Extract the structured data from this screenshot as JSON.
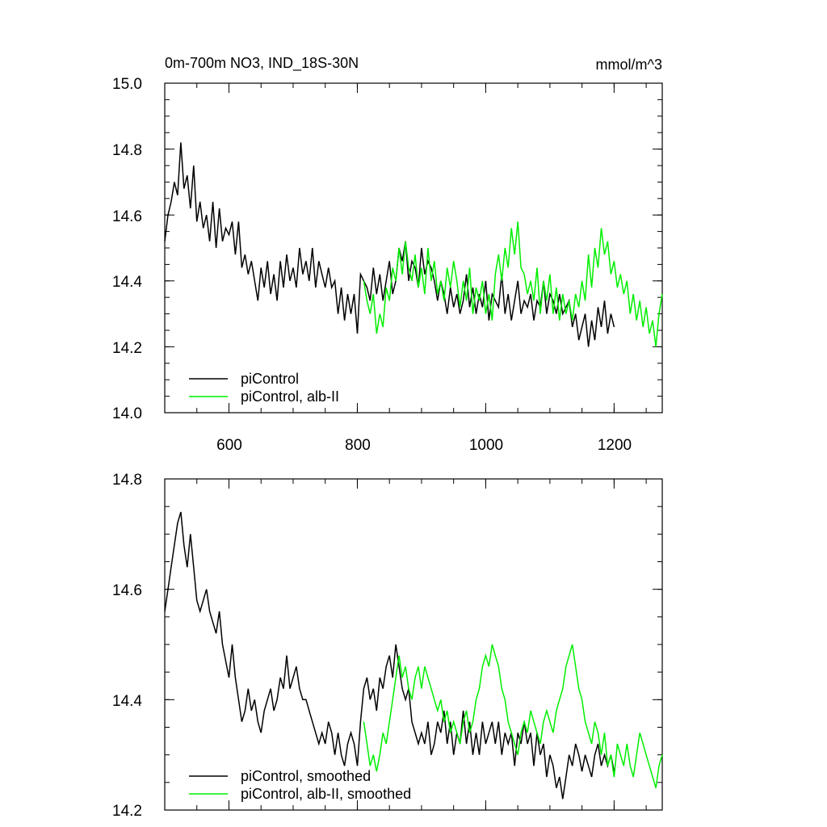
{
  "chart_data": [
    {
      "type": "line",
      "title": "0m-700m NO3, IND_18S-30N",
      "units": "mmol/m^3",
      "xlim": [
        500,
        1275
      ],
      "ylim": [
        14.0,
        15.0
      ],
      "x_ticks": [
        600,
        800,
        1000,
        1200
      ],
      "y_ticks": [
        14.0,
        14.2,
        14.4,
        14.6,
        14.8,
        15.0
      ],
      "y_tick_labels": [
        "14.0",
        "14.2",
        "14.4",
        "14.6",
        "14.8",
        "15.0"
      ],
      "x_tick_labels": [
        "600",
        "800",
        "1000",
        "1200"
      ],
      "grid": false,
      "legend_placement": "bottom-left",
      "series": [
        {
          "name": "piControl",
          "color": "#000000",
          "x": [
            500,
            505,
            510,
            515,
            520,
            525,
            530,
            535,
            540,
            545,
            550,
            555,
            560,
            565,
            570,
            575,
            580,
            585,
            590,
            595,
            600,
            605,
            610,
            615,
            620,
            625,
            630,
            635,
            640,
            645,
            650,
            655,
            660,
            665,
            670,
            675,
            680,
            685,
            690,
            695,
            700,
            705,
            710,
            715,
            720,
            725,
            730,
            735,
            740,
            745,
            750,
            755,
            760,
            765,
            770,
            775,
            780,
            785,
            790,
            795,
            800,
            805,
            810,
            815,
            820,
            825,
            830,
            835,
            840,
            845,
            850,
            855,
            860,
            865,
            870,
            875,
            880,
            885,
            890,
            895,
            900,
            905,
            910,
            915,
            920,
            925,
            930,
            935,
            940,
            945,
            950,
            955,
            960,
            965,
            970,
            975,
            980,
            985,
            990,
            995,
            1000,
            1005,
            1010,
            1015,
            1020,
            1025,
            1030,
            1035,
            1040,
            1045,
            1050,
            1055,
            1060,
            1065,
            1070,
            1075,
            1080,
            1085,
            1090,
            1095,
            1100,
            1105,
            1110,
            1115,
            1120,
            1125,
            1130,
            1135,
            1140,
            1145,
            1150,
            1155,
            1160,
            1165,
            1170,
            1175,
            1180,
            1185,
            1190,
            1195,
            1200
          ],
          "values": [
            14.52,
            14.6,
            14.64,
            14.7,
            14.66,
            14.82,
            14.68,
            14.72,
            14.62,
            14.75,
            14.58,
            14.64,
            14.56,
            14.6,
            14.52,
            14.64,
            14.5,
            14.62,
            14.52,
            14.56,
            14.54,
            14.58,
            14.48,
            14.58,
            14.44,
            14.48,
            14.42,
            14.46,
            14.4,
            14.34,
            14.44,
            14.38,
            14.46,
            14.36,
            14.42,
            14.34,
            14.46,
            14.38,
            14.48,
            14.4,
            14.44,
            14.38,
            14.5,
            14.42,
            14.46,
            14.4,
            14.5,
            14.38,
            14.46,
            14.42,
            14.38,
            14.44,
            14.38,
            14.4,
            14.3,
            14.38,
            14.28,
            14.36,
            14.3,
            14.36,
            14.24,
            14.42,
            14.4,
            14.38,
            14.34,
            14.44,
            14.36,
            14.42,
            14.34,
            14.4,
            14.46,
            14.36,
            14.4,
            14.5,
            14.46,
            14.52,
            14.4,
            14.46,
            14.44,
            14.38,
            14.5,
            14.42,
            14.46,
            14.44,
            14.4,
            14.34,
            14.4,
            14.36,
            14.3,
            14.38,
            14.32,
            14.36,
            14.3,
            14.34,
            14.42,
            14.32,
            14.38,
            14.3,
            14.36,
            14.32,
            14.4,
            14.28,
            14.36,
            14.34,
            14.32,
            14.42,
            14.3,
            14.36,
            14.28,
            14.34,
            14.4,
            14.3,
            14.34,
            14.32,
            14.36,
            14.28,
            14.34,
            14.32,
            14.4,
            14.3,
            14.36,
            14.34,
            14.3,
            14.36,
            14.3,
            14.32,
            14.34,
            14.26,
            14.3,
            14.22,
            14.26,
            14.3,
            14.2,
            14.28,
            14.22,
            14.32,
            14.26,
            14.34,
            14.24,
            14.3,
            14.26
          ]
        },
        {
          "name": "piControl, alb-II",
          "color": "#00ee00",
          "x": [
            810,
            815,
            820,
            825,
            830,
            835,
            840,
            845,
            850,
            855,
            860,
            865,
            870,
            875,
            880,
            885,
            890,
            895,
            900,
            905,
            910,
            915,
            920,
            925,
            930,
            935,
            940,
            945,
            950,
            955,
            960,
            965,
            970,
            975,
            980,
            985,
            990,
            995,
            1000,
            1005,
            1010,
            1015,
            1020,
            1025,
            1030,
            1035,
            1040,
            1045,
            1050,
            1055,
            1060,
            1065,
            1070,
            1075,
            1080,
            1085,
            1090,
            1095,
            1100,
            1105,
            1110,
            1115,
            1120,
            1125,
            1130,
            1135,
            1140,
            1145,
            1150,
            1155,
            1160,
            1165,
            1170,
            1175,
            1180,
            1185,
            1190,
            1195,
            1200,
            1205,
            1210,
            1215,
            1220,
            1225,
            1230,
            1235,
            1240,
            1245,
            1250,
            1255,
            1260,
            1265,
            1270,
            1275
          ],
          "values": [
            14.4,
            14.34,
            14.3,
            14.36,
            14.24,
            14.3,
            14.26,
            14.38,
            14.34,
            14.44,
            14.4,
            14.5,
            14.42,
            14.52,
            14.44,
            14.4,
            14.48,
            14.38,
            14.44,
            14.36,
            14.5,
            14.4,
            14.46,
            14.36,
            14.4,
            14.34,
            14.44,
            14.38,
            14.46,
            14.4,
            14.32,
            14.4,
            14.34,
            14.44,
            14.3,
            14.38,
            14.34,
            14.4,
            14.3,
            14.36,
            14.28,
            14.42,
            14.48,
            14.4,
            14.5,
            14.44,
            14.56,
            14.48,
            14.58,
            14.44,
            14.42,
            14.36,
            14.4,
            14.34,
            14.44,
            14.3,
            14.4,
            14.34,
            14.42,
            14.3,
            14.38,
            14.28,
            14.36,
            14.3,
            14.34,
            14.28,
            14.36,
            14.32,
            14.4,
            14.34,
            14.48,
            14.38,
            14.5,
            14.44,
            14.56,
            14.48,
            14.52,
            14.42,
            14.46,
            14.38,
            14.42,
            14.36,
            14.4,
            14.3,
            14.36,
            14.28,
            14.34,
            14.26,
            14.32,
            14.24,
            14.28,
            14.2,
            14.3,
            14.36
          ]
        }
      ]
    },
    {
      "type": "line",
      "xlim": [
        500,
        1275
      ],
      "ylim": [
        14.2,
        14.8
      ],
      "x_ticks": [
        600,
        800,
        1000,
        1200
      ],
      "y_ticks": [
        14.2,
        14.4,
        14.6,
        14.8
      ],
      "y_tick_labels": [
        "14.2",
        "14.4",
        "14.6",
        "14.8"
      ],
      "grid": false,
      "legend_placement": "bottom-left",
      "series": [
        {
          "name": "piControl, smoothed",
          "color": "#000000",
          "x": [
            500,
            505,
            510,
            515,
            520,
            525,
            530,
            535,
            540,
            545,
            550,
            555,
            560,
            565,
            570,
            575,
            580,
            585,
            590,
            595,
            600,
            605,
            610,
            615,
            620,
            625,
            630,
            635,
            640,
            645,
            650,
            655,
            660,
            665,
            670,
            675,
            680,
            685,
            690,
            695,
            700,
            705,
            710,
            715,
            720,
            725,
            730,
            735,
            740,
            745,
            750,
            755,
            760,
            765,
            770,
            775,
            780,
            785,
            790,
            795,
            800,
            805,
            810,
            815,
            820,
            825,
            830,
            835,
            840,
            845,
            850,
            855,
            860,
            865,
            870,
            875,
            880,
            885,
            890,
            895,
            900,
            905,
            910,
            915,
            920,
            925,
            930,
            935,
            940,
            945,
            950,
            955,
            960,
            965,
            970,
            975,
            980,
            985,
            990,
            995,
            1000,
            1005,
            1010,
            1015,
            1020,
            1025,
            1030,
            1035,
            1040,
            1045,
            1050,
            1055,
            1060,
            1065,
            1070,
            1075,
            1080,
            1085,
            1090,
            1095,
            1100,
            1105,
            1110,
            1115,
            1120,
            1125,
            1130,
            1135,
            1140,
            1145,
            1150,
            1155,
            1160,
            1165,
            1170,
            1175,
            1180,
            1185,
            1190,
            1195,
            1200
          ],
          "values": [
            14.56,
            14.6,
            14.64,
            14.68,
            14.72,
            14.74,
            14.68,
            14.64,
            14.7,
            14.64,
            14.58,
            14.56,
            14.58,
            14.6,
            14.56,
            14.54,
            14.52,
            14.56,
            14.5,
            14.47,
            14.44,
            14.5,
            14.44,
            14.4,
            14.36,
            14.38,
            14.42,
            14.38,
            14.4,
            14.36,
            14.34,
            14.38,
            14.4,
            14.42,
            14.38,
            14.4,
            14.44,
            14.42,
            14.48,
            14.42,
            14.44,
            14.46,
            14.42,
            14.4,
            14.4,
            14.38,
            14.36,
            14.34,
            14.32,
            14.34,
            14.32,
            14.36,
            14.34,
            14.3,
            14.34,
            14.3,
            14.28,
            14.32,
            14.34,
            14.32,
            14.28,
            14.36,
            14.42,
            14.44,
            14.4,
            14.42,
            14.38,
            14.44,
            14.42,
            14.46,
            14.48,
            14.44,
            14.5,
            14.46,
            14.42,
            14.4,
            14.42,
            14.36,
            14.34,
            14.32,
            14.34,
            14.32,
            14.36,
            14.3,
            14.32,
            14.36,
            14.34,
            14.38,
            14.32,
            14.36,
            14.3,
            14.34,
            14.32,
            14.38,
            14.32,
            14.36,
            14.3,
            14.34,
            14.3,
            14.36,
            14.32,
            14.34,
            14.36,
            14.32,
            14.36,
            14.3,
            14.34,
            14.32,
            14.34,
            14.28,
            14.34,
            14.32,
            14.36,
            14.32,
            14.34,
            14.28,
            14.34,
            14.3,
            14.32,
            14.26,
            14.3,
            14.28,
            14.24,
            14.26,
            14.22,
            14.26,
            14.3,
            14.28,
            14.32,
            14.3,
            14.27,
            14.3,
            14.28,
            14.26,
            14.3,
            14.32,
            14.28,
            14.3,
            14.28,
            14.3,
            14.27
          ]
        },
        {
          "name": "piControl, alb-II, smoothed",
          "color": "#00ee00",
          "x": [
            810,
            815,
            820,
            825,
            830,
            835,
            840,
            845,
            850,
            855,
            860,
            865,
            870,
            875,
            880,
            885,
            890,
            895,
            900,
            905,
            910,
            915,
            920,
            925,
            930,
            935,
            940,
            945,
            950,
            955,
            960,
            965,
            970,
            975,
            980,
            985,
            990,
            995,
            1000,
            1005,
            1010,
            1015,
            1020,
            1025,
            1030,
            1035,
            1040,
            1045,
            1050,
            1055,
            1060,
            1065,
            1070,
            1075,
            1080,
            1085,
            1090,
            1095,
            1100,
            1105,
            1110,
            1115,
            1120,
            1125,
            1130,
            1135,
            1140,
            1145,
            1150,
            1155,
            1160,
            1165,
            1170,
            1175,
            1180,
            1185,
            1190,
            1195,
            1200,
            1205,
            1210,
            1215,
            1220,
            1225,
            1230,
            1235,
            1240,
            1245,
            1250,
            1255,
            1260,
            1265,
            1270,
            1275
          ],
          "values": [
            14.36,
            14.32,
            14.28,
            14.3,
            14.27,
            14.3,
            14.34,
            14.32,
            14.36,
            14.4,
            14.44,
            14.48,
            14.44,
            14.46,
            14.42,
            14.4,
            14.44,
            14.46,
            14.42,
            14.46,
            14.44,
            14.42,
            14.4,
            14.38,
            14.4,
            14.36,
            14.38,
            14.34,
            14.36,
            14.34,
            14.32,
            14.36,
            14.38,
            14.34,
            14.36,
            14.4,
            14.42,
            14.46,
            14.48,
            14.46,
            14.5,
            14.48,
            14.46,
            14.42,
            14.4,
            14.36,
            14.34,
            14.32,
            14.3,
            14.34,
            14.36,
            14.34,
            14.38,
            14.36,
            14.34,
            14.32,
            14.36,
            14.38,
            14.36,
            14.34,
            14.38,
            14.4,
            14.42,
            14.46,
            14.48,
            14.5,
            14.46,
            14.42,
            14.4,
            14.36,
            14.34,
            14.32,
            14.36,
            14.34,
            14.3,
            14.34,
            14.28,
            14.3,
            14.26,
            14.32,
            14.3,
            14.28,
            14.32,
            14.28,
            14.26,
            14.3,
            14.34,
            14.32,
            14.3,
            14.28,
            14.26,
            14.24,
            14.28,
            14.3
          ]
        }
      ]
    }
  ]
}
